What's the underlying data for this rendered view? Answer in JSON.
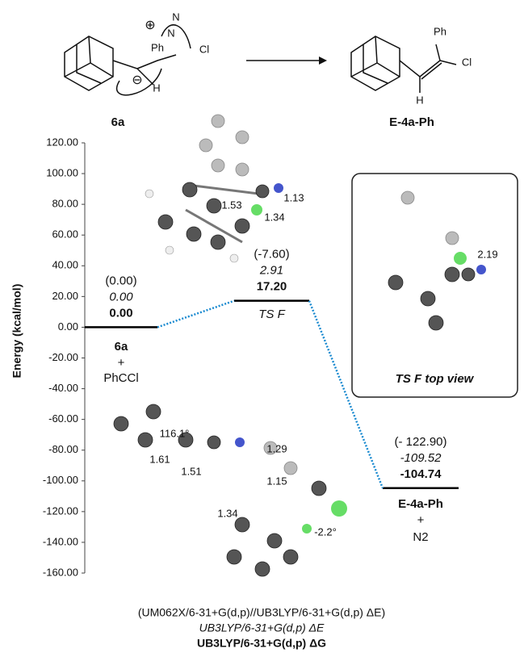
{
  "chart_data": {
    "type": "energy",
    "y_label": "Energy (kcal/mol)",
    "ylim": [
      -160,
      120
    ],
    "yticks": [
      {
        "value": 120,
        "label": "120.00"
      },
      {
        "value": 100,
        "label": "100.00"
      },
      {
        "value": 80,
        "label": "80.00"
      },
      {
        "value": 60,
        "label": "60.00"
      },
      {
        "value": 40,
        "label": "40.00"
      },
      {
        "value": 20,
        "label": "20.00"
      },
      {
        "value": 0,
        "label": "0.00"
      },
      {
        "value": -20,
        "label": "-20.00"
      },
      {
        "value": -40,
        "label": "-40.00"
      },
      {
        "value": -60,
        "label": "-60.00"
      },
      {
        "value": -80,
        "label": "-80.00"
      },
      {
        "value": -100,
        "label": "-100.00"
      },
      {
        "value": -120,
        "label": "-120.00"
      },
      {
        "value": -140,
        "label": "-140.00"
      },
      {
        "value": -160,
        "label": "-160.00"
      }
    ],
    "categories": [
      [
        "6a",
        "+",
        "PhCCl"
      ],
      [
        "TS F"
      ],
      [
        "E-4a-Ph",
        "+",
        "N2"
      ]
    ],
    "series": [
      {
        "name": "(UM062X/6-31+G(d,p)//UB3LYP/6-31+G(d,p) ΔE)",
        "values": [
          0,
          -7.6,
          -122.9
        ],
        "value_labels": [
          "(0.00)",
          "(-7.60)",
          "(- 122.90)"
        ]
      },
      {
        "name": "UB3LYP/6-31+G(d,p) ΔE",
        "values": [
          0,
          2.91,
          -109.52
        ],
        "value_labels": [
          "0.00",
          "2.91",
          "-109.52"
        ]
      },
      {
        "name": "UB3LYP/6-31+G(d,p) ΔG",
        "values": [
          0,
          17.2,
          -104.74
        ],
        "value_labels": [
          "0.00",
          "17.20",
          "-104.74"
        ]
      }
    ],
    "level_color": "#000000",
    "connector_color": "#1a8ad0",
    "scheme": {
      "labels": [
        "6a",
        "E-4a-Ph"
      ],
      "atoms": [
        "N",
        "N",
        "H",
        "Ph",
        "Cl",
        "Ph",
        "Cl",
        "H"
      ],
      "charges": [
        "⊕",
        "⊖"
      ]
    },
    "inset_title": "TS F top view",
    "annotations": [
      "1.53",
      "1.13",
      "1.34",
      "2.19",
      "116.1°",
      "1.29",
      "1.61",
      "1.51",
      "1.15",
      "1.34",
      "-2.2°"
    ]
  }
}
